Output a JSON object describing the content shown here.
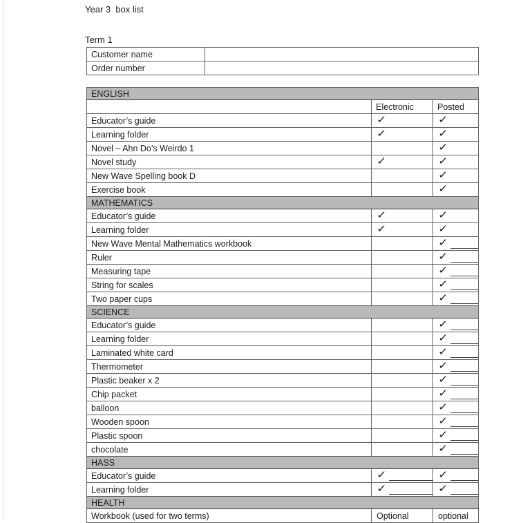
{
  "colors": {
    "section_bg": "#b9b9b9",
    "border": "#5f5f5f",
    "border_dark": "#3a3a3a",
    "text": "#1c1c1c",
    "page_edge": "#dcdcdc"
  },
  "page": {
    "title": "Year 3  box list",
    "term_label": "Term 1"
  },
  "customer_table": {
    "rows": [
      {
        "label": "Customer name",
        "value": ""
      },
      {
        "label": "Order number",
        "value": ""
      }
    ]
  },
  "box_table": {
    "check_symbol": "✓",
    "rows": [
      {
        "type": "section",
        "label": "ENGLISH"
      },
      {
        "type": "colheads",
        "label": "",
        "electronic": "Electronic",
        "posted": "Posted"
      },
      {
        "type": "item",
        "label": "Educator’s guide",
        "electronic": "check",
        "posted": "check"
      },
      {
        "type": "item",
        "label": "Learning folder",
        "electronic": "check",
        "posted": "check"
      },
      {
        "type": "item",
        "label": "Novel – Ahn Do’s Weirdo 1",
        "electronic": "",
        "posted": "check"
      },
      {
        "type": "item",
        "label": "Novel study",
        "electronic": "check",
        "posted": "check"
      },
      {
        "type": "item",
        "label": "New Wave Spelling book D",
        "electronic": "",
        "posted": "check"
      },
      {
        "type": "item",
        "label": "Exercise book",
        "electronic": "",
        "posted": "check"
      },
      {
        "type": "section",
        "label": "MATHEMATICS"
      },
      {
        "type": "item",
        "label": "Educator’s guide",
        "electronic": "check",
        "posted": "check"
      },
      {
        "type": "item",
        "label": "Learning folder",
        "electronic": "check",
        "posted": "check"
      },
      {
        "type": "item",
        "label": "New Wave Mental Mathematics workbook",
        "electronic": "",
        "posted": "check-line"
      },
      {
        "type": "item",
        "label": "Ruler",
        "electronic": "",
        "posted": "check-line"
      },
      {
        "type": "item",
        "label": "Measuring tape",
        "electronic": "",
        "posted": "check-line"
      },
      {
        "type": "item",
        "label": "String for scales",
        "electronic": "",
        "posted": "check-line"
      },
      {
        "type": "item",
        "label": "Two paper cups",
        "electronic": "",
        "posted": "check-line"
      },
      {
        "type": "section",
        "label": "SCIENCE"
      },
      {
        "type": "item",
        "label": "Educator’s guide",
        "electronic": "",
        "posted": "check-line"
      },
      {
        "type": "item",
        "label": "Learning folder",
        "electronic": "",
        "posted": "check-line"
      },
      {
        "type": "item",
        "label": "Laminated white card",
        "electronic": "",
        "posted": "check-line"
      },
      {
        "type": "item",
        "label": "Thermometer",
        "electronic": "",
        "posted": "check-line"
      },
      {
        "type": "item",
        "label": "Plastic beaker x 2",
        "electronic": "",
        "posted": "check-line"
      },
      {
        "type": "item",
        "label": "Chip packet",
        "electronic": "",
        "posted": "check-line"
      },
      {
        "type": "item",
        "label": "balloon",
        "electronic": "",
        "posted": "check-line"
      },
      {
        "type": "item",
        "label": "Wooden spoon",
        "electronic": "",
        "posted": "check-line"
      },
      {
        "type": "item",
        "label": "Plastic spoon",
        "electronic": "",
        "posted": "check-line"
      },
      {
        "type": "item",
        "label": "chocolate",
        "electronic": "",
        "posted": "check-line"
      },
      {
        "type": "section",
        "label": "HASS"
      },
      {
        "type": "item",
        "label": "Educator’s guide",
        "electronic": "check-line",
        "posted": "check-line"
      },
      {
        "type": "item",
        "label": "Learning folder",
        "electronic": "check-line",
        "posted": "check-line"
      },
      {
        "type": "section",
        "label": "HEALTH"
      },
      {
        "type": "item",
        "label": "Workbook (used for two terms)",
        "electronic": "Optional",
        "posted": "optional"
      }
    ]
  }
}
